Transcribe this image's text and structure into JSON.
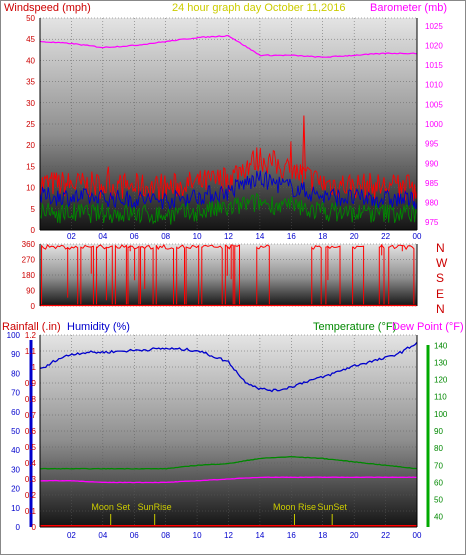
{
  "header": {
    "windspeed_label": "Windspeed (mph)",
    "title": "24 hour graph day  October 11,2016",
    "barometer_label": "Barometer (mb)"
  },
  "colors": {
    "red": "#ff0000",
    "blue": "#0000cc",
    "green": "#008800",
    "magenta": "#ff00ff",
    "yellow": "#cccc00",
    "axis_text": "#cc0000"
  },
  "labels": {
    "rainfall": "Rainfall (.in)",
    "humidity": "Humidity (%)",
    "temperature": "Temperature (°F)",
    "dewpoint": "Dew Point (°F)",
    "direction": [
      "N",
      "W",
      "S",
      "E",
      "N"
    ],
    "events": [
      {
        "text": "Moon Set",
        "hour": 4.5
      },
      {
        "text": "SunRise",
        "hour": 7.3
      },
      {
        "text": "Moon Rise",
        "hour": 16.2
      },
      {
        "text": "SunSet",
        "hour": 18.6
      }
    ]
  },
  "chart_data": [
    {
      "type": "line",
      "name": "wind-baro",
      "x_ticks": [
        "02",
        "04",
        "06",
        "08",
        "10",
        "12",
        "14",
        "16",
        "18",
        "20",
        "22",
        "00"
      ],
      "y_left_ticks": [
        0,
        5,
        10,
        15,
        20,
        25,
        30,
        35,
        40,
        45,
        50
      ],
      "y_right_ticks": [
        975,
        980,
        985,
        990,
        995,
        1000,
        1005,
        1010,
        1015,
        1020,
        1025
      ],
      "ylim_left": [
        0,
        50
      ],
      "ylim_right": [
        973,
        1027
      ],
      "barometer": {
        "hours": [
          0,
          2,
          4,
          6,
          8,
          10,
          12,
          13,
          14,
          16,
          18,
          20,
          22,
          24
        ],
        "values": [
          1021,
          1020.5,
          1019.5,
          1020,
          1021,
          1022,
          1022.5,
          1020,
          1017.5,
          1017.5,
          1017,
          1017.5,
          1018,
          1018
        ]
      },
      "wind_gust_avg": {
        "hours": [
          0,
          4,
          8,
          12,
          13,
          14,
          16,
          18,
          20,
          24
        ],
        "values": [
          11,
          10.5,
          10,
          12,
          15,
          17,
          14,
          11,
          10.5,
          10
        ]
      },
      "wind_avg_avg": {
        "hours": [
          0,
          4,
          8,
          12,
          13,
          14,
          16,
          18,
          20,
          24
        ],
        "values": [
          8,
          7.5,
          7,
          9,
          11,
          12,
          10,
          8,
          7.5,
          7
        ]
      },
      "wind_low_avg": {
        "hours": [
          0,
          4,
          8,
          12,
          13,
          14,
          16,
          18,
          20,
          24
        ],
        "values": [
          4,
          4,
          3.5,
          5,
          6,
          6.5,
          5.5,
          4.5,
          4,
          4
        ]
      }
    },
    {
      "type": "line",
      "name": "wind-direction",
      "y_ticks": [
        0,
        90,
        180,
        270,
        360
      ],
      "ylim": [
        0,
        360
      ],
      "high_segments": [
        [
          0.1,
          2.4
        ],
        [
          2.6,
          3.4
        ],
        [
          3.6,
          4.6
        ],
        [
          4.8,
          5.5
        ],
        [
          5.6,
          6.3
        ],
        [
          6.4,
          7.2
        ],
        [
          7.4,
          8.5
        ],
        [
          8.7,
          9.2
        ],
        [
          9.3,
          10.1
        ],
        [
          10.3,
          11.6
        ],
        [
          11.8,
          12.3
        ],
        [
          12.4,
          12.7
        ],
        [
          13.8,
          14.6
        ],
        [
          17.3,
          17.9
        ],
        [
          18.2,
          19.1
        ],
        [
          19.9,
          20.6
        ],
        [
          21.6,
          21.9
        ],
        [
          22.2,
          23.8
        ]
      ]
    },
    {
      "type": "line",
      "name": "humidity-temp",
      "y_rain_ticks": [
        0,
        0.1,
        0.2,
        0.3,
        0.4,
        0.5,
        0.6,
        0.7,
        0.8,
        0.9,
        1,
        1.1,
        1.2
      ],
      "y_humidity_ticks": [
        0,
        10,
        20,
        30,
        40,
        50,
        60,
        70,
        80,
        90,
        100
      ],
      "y_temp_ticks": [
        40,
        50,
        60,
        70,
        80,
        90,
        100,
        110,
        120,
        130,
        140
      ],
      "ylim_rain": [
        0,
        1.2
      ],
      "ylim_humidity": [
        0,
        100
      ],
      "ylim_temp": [
        34,
        146
      ],
      "humidity": {
        "hours": [
          0,
          0.5,
          1,
          2,
          3,
          4,
          6,
          8,
          10,
          11,
          12,
          13,
          14,
          15,
          16,
          17,
          18,
          19,
          20,
          21,
          22,
          23,
          24
        ],
        "values": [
          82,
          84,
          87,
          90,
          91,
          91,
          92,
          93,
          92,
          89,
          86,
          76,
          72,
          71,
          73,
          76,
          78,
          81,
          84,
          86,
          88,
          91,
          96
        ]
      },
      "temperature": {
        "hours": [
          0,
          4,
          8,
          10,
          12,
          14,
          16,
          18,
          20,
          22,
          24
        ],
        "values": [
          68,
          68,
          68,
          70,
          71,
          74,
          75,
          74,
          72,
          70,
          68
        ]
      },
      "dewpoint": {
        "hours": [
          0,
          2,
          4,
          6,
          8,
          10,
          12,
          14,
          16,
          18,
          20,
          22,
          24
        ],
        "values": [
          61,
          61,
          60,
          60,
          60,
          61,
          62,
          63,
          63,
          63,
          63,
          63,
          63
        ]
      },
      "rainfall": 0
    }
  ]
}
